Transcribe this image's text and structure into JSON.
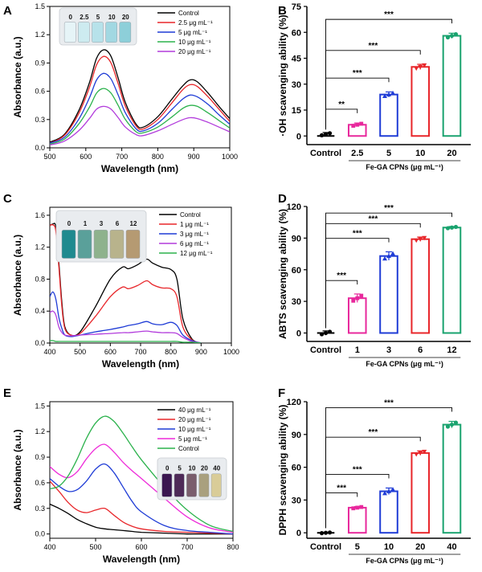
{
  "colors": {
    "black": "#000000",
    "red": "#e8262a",
    "blue": "#1f3cd6",
    "green": "#2bb24c",
    "purple": "#b23cdc",
    "magenta": "#e8289c",
    "teal": "#1aa36f"
  },
  "chart_data": [
    {
      "id": "A",
      "panel": "A",
      "type": "line",
      "xlabel": "Wavelength (nm)",
      "ylabel": "Absorbance (a.u.)",
      "xlim": [
        500,
        1000
      ],
      "ylim": [
        0,
        1.5
      ],
      "xticks": [
        500,
        600,
        700,
        800,
        900,
        1000
      ],
      "yticks": [
        0.0,
        0.3,
        0.6,
        0.9,
        1.2,
        1.5
      ],
      "yticks_text": [
        "0.0",
        "0.3",
        "0.6",
        "0.9",
        "1.2",
        "1.5"
      ],
      "legend": [
        "Control",
        "2.5 μg mL⁻¹",
        "5 μg mL⁻¹",
        "10 μg mL⁻¹",
        "20 μg mL⁻¹"
      ],
      "inset_labels": [
        "0",
        "2.5",
        "5",
        "10",
        "20"
      ],
      "series": [
        {
          "name": "Control",
          "color": "#000000",
          "x": [
            500,
            540,
            580,
            610,
            630,
            650,
            670,
            690,
            710,
            740,
            760,
            800,
            840,
            870,
            890,
            910,
            940,
            970,
            1000
          ],
          "y": [
            0.06,
            0.14,
            0.39,
            0.69,
            0.95,
            1.04,
            0.97,
            0.74,
            0.48,
            0.25,
            0.22,
            0.33,
            0.52,
            0.66,
            0.72,
            0.7,
            0.58,
            0.44,
            0.31
          ]
        },
        {
          "name": "2.5 μg mL⁻¹",
          "color": "#e8262a",
          "x": [
            500,
            540,
            580,
            610,
            630,
            650,
            670,
            690,
            710,
            740,
            760,
            800,
            840,
            870,
            890,
            910,
            940,
            970,
            1000
          ],
          "y": [
            0.05,
            0.13,
            0.36,
            0.64,
            0.88,
            0.97,
            0.9,
            0.68,
            0.44,
            0.23,
            0.2,
            0.3,
            0.48,
            0.62,
            0.67,
            0.65,
            0.54,
            0.41,
            0.28
          ]
        },
        {
          "name": "5 μg mL⁻¹",
          "color": "#1f3cd6",
          "x": [
            500,
            540,
            580,
            610,
            630,
            650,
            670,
            690,
            710,
            740,
            760,
            800,
            840,
            870,
            890,
            910,
            940,
            970,
            1000
          ],
          "y": [
            0.05,
            0.11,
            0.3,
            0.53,
            0.72,
            0.79,
            0.73,
            0.56,
            0.37,
            0.2,
            0.18,
            0.26,
            0.41,
            0.52,
            0.56,
            0.54,
            0.46,
            0.35,
            0.25
          ]
        },
        {
          "name": "10 μg mL⁻¹",
          "color": "#2bb24c",
          "x": [
            500,
            540,
            580,
            610,
            630,
            650,
            670,
            690,
            710,
            740,
            760,
            800,
            840,
            870,
            890,
            910,
            940,
            970,
            1000
          ],
          "y": [
            0.04,
            0.09,
            0.25,
            0.43,
            0.58,
            0.63,
            0.58,
            0.45,
            0.3,
            0.17,
            0.16,
            0.22,
            0.33,
            0.42,
            0.45,
            0.44,
            0.37,
            0.29,
            0.21
          ]
        },
        {
          "name": "20 μg mL⁻¹",
          "color": "#b23cdc",
          "x": [
            500,
            540,
            580,
            610,
            630,
            650,
            670,
            690,
            710,
            740,
            760,
            800,
            840,
            870,
            890,
            910,
            940,
            970,
            1000
          ],
          "y": [
            0.03,
            0.07,
            0.18,
            0.31,
            0.41,
            0.44,
            0.41,
            0.32,
            0.22,
            0.14,
            0.13,
            0.18,
            0.25,
            0.3,
            0.32,
            0.31,
            0.27,
            0.22,
            0.17
          ]
        }
      ]
    },
    {
      "id": "B",
      "panel": "B",
      "type": "bar",
      "ylabel": "·OH scavenging ability (%)",
      "group_label": "Fe-GA CPNs (μg mL⁻¹)",
      "categories": [
        "Control",
        "2.5",
        "5",
        "10",
        "20"
      ],
      "values": [
        1,
        6.5,
        24,
        40,
        58
      ],
      "errors": [
        1,
        1,
        1.5,
        1.5,
        1.5
      ],
      "colors": [
        "#000000",
        "#e8289c",
        "#1f3cd6",
        "#e8262a",
        "#1aa36f"
      ],
      "ylim": [
        -5,
        75
      ],
      "yticks": [
        0,
        15,
        30,
        45,
        60,
        75
      ],
      "significance": [
        {
          "to": 1,
          "label": "**"
        },
        {
          "to": 2,
          "label": "***"
        },
        {
          "to": 3,
          "label": "***"
        },
        {
          "to": 4,
          "label": "***"
        }
      ]
    },
    {
      "id": "C",
      "panel": "C",
      "type": "line",
      "xlabel": "Wavelength (nm)",
      "ylabel": "Absorbance (a.u.)",
      "xlim": [
        400,
        1000
      ],
      "ylim": [
        0,
        1.7
      ],
      "xticks": [
        400,
        500,
        600,
        700,
        800,
        900,
        1000
      ],
      "yticks": [
        0.0,
        0.4,
        0.8,
        1.2,
        1.6
      ],
      "yticks_text": [
        "0.0",
        "0.4",
        "0.8",
        "1.2",
        "1.6"
      ],
      "legend": [
        "Control",
        "1 μg mL⁻¹",
        "3 μg mL⁻¹",
        "6 μg mL⁻¹",
        "12 μg mL⁻¹"
      ],
      "inset_labels": [
        "0",
        "1",
        "3",
        "6",
        "12"
      ],
      "series": [
        {
          "name": "Control",
          "color": "#000000",
          "x": [
            400,
            410,
            420,
            430,
            440,
            450,
            470,
            500,
            550,
            600,
            640,
            660,
            690,
            720,
            740,
            770,
            800,
            820,
            840,
            870,
            900
          ],
          "y": [
            1.47,
            1.49,
            1.45,
            1.0,
            0.5,
            0.2,
            0.1,
            0.14,
            0.45,
            0.8,
            0.95,
            0.93,
            0.98,
            1.05,
            1.0,
            0.95,
            0.92,
            0.8,
            0.3,
            0.05,
            0.0
          ]
        },
        {
          "name": "1 μg mL⁻¹",
          "color": "#e8262a",
          "x": [
            400,
            410,
            420,
            430,
            440,
            450,
            470,
            500,
            550,
            600,
            640,
            660,
            690,
            720,
            740,
            770,
            800,
            820,
            840,
            870,
            900
          ],
          "y": [
            1.47,
            1.48,
            1.4,
            0.95,
            0.45,
            0.18,
            0.1,
            0.12,
            0.33,
            0.58,
            0.7,
            0.68,
            0.72,
            0.78,
            0.73,
            0.69,
            0.68,
            0.58,
            0.2,
            0.04,
            0.0
          ]
        },
        {
          "name": "3 μg mL⁻¹",
          "color": "#1f3cd6",
          "x": [
            400,
            410,
            420,
            430,
            440,
            450,
            470,
            500,
            550,
            600,
            640,
            660,
            690,
            720,
            740,
            770,
            800,
            820,
            840,
            870,
            900
          ],
          "y": [
            0.58,
            0.64,
            0.55,
            0.32,
            0.18,
            0.1,
            0.08,
            0.1,
            0.14,
            0.17,
            0.2,
            0.22,
            0.24,
            0.27,
            0.24,
            0.23,
            0.26,
            0.22,
            0.1,
            0.03,
            0.0
          ]
        },
        {
          "name": "6 μg mL⁻¹",
          "color": "#b23cdc",
          "x": [
            400,
            410,
            420,
            430,
            440,
            450,
            470,
            500,
            550,
            600,
            640,
            660,
            690,
            720,
            740,
            770,
            800,
            820,
            840,
            870,
            900
          ],
          "y": [
            0.38,
            0.4,
            0.35,
            0.2,
            0.13,
            0.1,
            0.09,
            0.1,
            0.11,
            0.12,
            0.13,
            0.13,
            0.14,
            0.15,
            0.14,
            0.13,
            0.13,
            0.12,
            0.07,
            0.02,
            0.0
          ]
        },
        {
          "name": "12 μg mL⁻¹",
          "color": "#2bb24c",
          "x": [
            400,
            410,
            420,
            430,
            440,
            450,
            470,
            500,
            550,
            600,
            640,
            660,
            690,
            720,
            740,
            770,
            800,
            820,
            840,
            870,
            900
          ],
          "y": [
            0.03,
            0.03,
            0.02,
            0.02,
            0.02,
            0.02,
            0.02,
            0.02,
            0.02,
            0.02,
            0.02,
            0.02,
            0.02,
            0.02,
            0.02,
            0.02,
            0.02,
            0.02,
            0.01,
            0.01,
            0.0
          ]
        }
      ]
    },
    {
      "id": "D",
      "panel": "D",
      "type": "bar",
      "ylabel": "ABTS scavenging ability (%)",
      "group_label": "Fe-GA CPNs (μg mL⁻¹)",
      "categories": [
        "Control",
        "1",
        "3",
        "6",
        "12"
      ],
      "values": [
        0,
        33,
        73,
        89,
        100
      ],
      "errors": [
        2,
        4,
        4,
        2,
        1
      ],
      "colors": [
        "#000000",
        "#e8289c",
        "#1f3cd6",
        "#e8262a",
        "#1aa36f"
      ],
      "ylim": [
        -8,
        120
      ],
      "yticks": [
        0,
        30,
        60,
        90,
        120
      ],
      "significance": [
        {
          "to": 1,
          "label": "***"
        },
        {
          "to": 2,
          "label": "***"
        },
        {
          "to": 3,
          "label": "***"
        },
        {
          "to": 4,
          "label": "***"
        }
      ]
    },
    {
      "id": "E",
      "panel": "E",
      "type": "line",
      "xlabel": "Wavelength (nm)",
      "ylabel": "Absorbance (a.u.)",
      "xlim": [
        400,
        800
      ],
      "ylim": [
        -0.05,
        1.55
      ],
      "xticks": [
        400,
        500,
        600,
        700,
        800
      ],
      "yticks": [
        0.0,
        0.3,
        0.6,
        0.9,
        1.2,
        1.5
      ],
      "yticks_text": [
        "0.0",
        "0.3",
        "0.6",
        "0.9",
        "1.2",
        "1.5"
      ],
      "legend": [
        "40 μg mL⁻¹",
        "20 μg mL⁻¹",
        "10 μg mL⁻¹",
        "5 μg mL⁻¹",
        "Control"
      ],
      "inset_labels": [
        "0",
        "5",
        "10",
        "20",
        "40"
      ],
      "series": [
        {
          "name": "40 μg mL⁻¹",
          "color": "#000000",
          "x": [
            400,
            420,
            440,
            460,
            480,
            500,
            520,
            540,
            560,
            580,
            600,
            650,
            700,
            750,
            800
          ],
          "y": [
            0.35,
            0.3,
            0.24,
            0.17,
            0.12,
            0.08,
            0.06,
            0.05,
            0.04,
            0.03,
            0.02,
            0.01,
            0.0,
            0.0,
            0.0
          ]
        },
        {
          "name": "20 μg mL⁻¹",
          "color": "#e8262a",
          "x": [
            400,
            420,
            440,
            460,
            480,
            500,
            520,
            540,
            560,
            580,
            600,
            650,
            700,
            750,
            800
          ],
          "y": [
            0.62,
            0.5,
            0.37,
            0.28,
            0.25,
            0.28,
            0.3,
            0.22,
            0.14,
            0.09,
            0.06,
            0.03,
            0.02,
            0.01,
            0.0
          ]
        },
        {
          "name": "10 μg mL⁻¹",
          "color": "#1f3cd6",
          "x": [
            400,
            420,
            440,
            460,
            480,
            500,
            520,
            540,
            560,
            580,
            600,
            650,
            700,
            750,
            800
          ],
          "y": [
            0.65,
            0.56,
            0.5,
            0.52,
            0.62,
            0.76,
            0.82,
            0.72,
            0.55,
            0.38,
            0.26,
            0.1,
            0.04,
            0.02,
            0.0
          ]
        },
        {
          "name": "5 μg mL⁻¹",
          "color": "#ee2ad9",
          "x": [
            400,
            420,
            440,
            460,
            480,
            500,
            520,
            540,
            560,
            580,
            600,
            650,
            700,
            750,
            800
          ],
          "y": [
            0.79,
            0.7,
            0.66,
            0.73,
            0.88,
            1.0,
            1.05,
            0.96,
            0.84,
            0.74,
            0.65,
            0.42,
            0.2,
            0.07,
            0.02
          ]
        },
        {
          "name": "Control",
          "color": "#2bb24c",
          "x": [
            400,
            420,
            440,
            460,
            480,
            500,
            520,
            540,
            560,
            580,
            600,
            650,
            700,
            750,
            800
          ],
          "y": [
            0.53,
            0.56,
            0.68,
            0.88,
            1.12,
            1.3,
            1.38,
            1.32,
            1.18,
            1.02,
            0.87,
            0.55,
            0.28,
            0.1,
            0.03
          ]
        }
      ]
    },
    {
      "id": "F",
      "panel": "F",
      "type": "bar",
      "ylabel": "DPPH scavenging ability (%)",
      "group_label": "Fe-GA CPNs (μg mL⁻¹)",
      "categories": [
        "Control",
        "5",
        "10",
        "20",
        "40"
      ],
      "values": [
        0,
        23,
        38,
        73,
        99
      ],
      "errors": [
        0.5,
        1,
        3,
        2,
        3
      ],
      "colors": [
        "#000000",
        "#e8289c",
        "#1f3cd6",
        "#e8262a",
        "#1aa36f"
      ],
      "ylim": [
        -5,
        120
      ],
      "yticks": [
        0,
        30,
        60,
        90,
        120
      ],
      "significance": [
        {
          "to": 1,
          "label": "***"
        },
        {
          "to": 2,
          "label": "***"
        },
        {
          "to": 3,
          "label": "***"
        },
        {
          "to": 4,
          "label": "***"
        }
      ]
    }
  ]
}
